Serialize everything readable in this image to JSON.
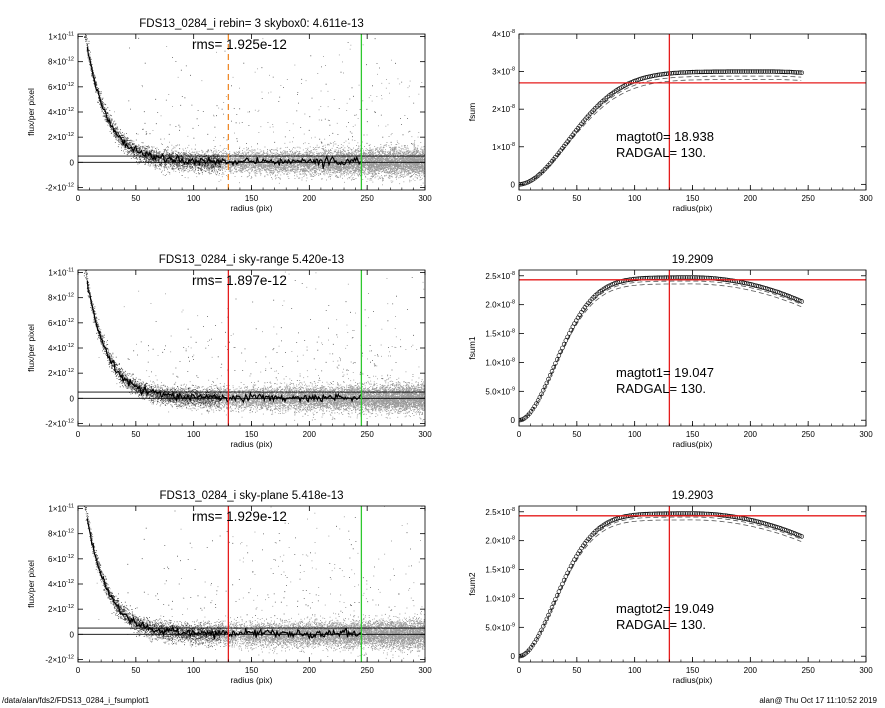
{
  "footer": {
    "left": "/data/alan/fds2/FDS13_0284_i_fsumplot1",
    "right": "alan@  Thu Oct 17 11:10:52 2019"
  },
  "colors": {
    "scatter": "#9a9a9a",
    "profile": "#000000",
    "inner_radius_line": "#e51c1c",
    "inner_radius_dashed_line": "#f08a2a",
    "outer_radius_line": "#2ec82e",
    "fsum_marker": "#000000",
    "fsum_dashed": "#555555"
  },
  "chart_data": [
    {
      "id": "profile-1",
      "type": "scatter",
      "title": "FDS13_0284_i rebin= 3    skybox0:  4.611e-13",
      "annotations": [
        "rms= 1.925e-12"
      ],
      "xlabel": "radius (pix)",
      "ylabel": "flux/per pixel",
      "xlim": [
        0,
        300
      ],
      "ylim": [
        -2.2e-12,
        1.02e-11
      ],
      "xticks": [
        0,
        50,
        100,
        150,
        200,
        250,
        300
      ],
      "xtick_labels": [
        "0",
        "50",
        "100",
        "150",
        "200",
        "250",
        "300"
      ],
      "yticks": [
        -2e-12,
        0,
        2e-12,
        4e-12,
        6e-12,
        8e-12,
        1e-11
      ],
      "ytick_labels": [
        "-2×10⁻¹²",
        "0",
        "2×10⁻¹²",
        "4×10⁻¹²",
        "6×10⁻¹²",
        "8×10⁻¹²",
        "1×10⁻¹¹"
      ],
      "hlines": [
        0,
        5e-13
      ],
      "vlines": [
        {
          "x": 130,
          "color": "#f08a2a",
          "style": "dashed"
        },
        {
          "x": 245,
          "color": "#2ec82e",
          "style": "solid"
        }
      ],
      "profile": {
        "peak_x": 5,
        "peak_y": 1.08e-11,
        "scale_length": 18,
        "end_x": 245
      },
      "scatter": {
        "x_range": [
          0,
          300
        ],
        "noise_rms": 1.925e-12,
        "extra_dark_points": true
      }
    },
    {
      "id": "profile-2",
      "type": "scatter",
      "title": "FDS13_0284_i sky-range  5.420e-13",
      "annotations": [
        "rms= 1.897e-12"
      ],
      "xlabel": "radius (pix)",
      "ylabel": "flux/per pixel",
      "xlim": [
        0,
        300
      ],
      "ylim": [
        -2.2e-12,
        1.02e-11
      ],
      "xticks": [
        0,
        50,
        100,
        150,
        200,
        250,
        300
      ],
      "xtick_labels": [
        "0",
        "50",
        "100",
        "150",
        "200",
        "250",
        "300"
      ],
      "yticks": [
        -2e-12,
        0,
        2e-12,
        4e-12,
        6e-12,
        8e-12,
        1e-11
      ],
      "ytick_labels": [
        "-2×10⁻¹²",
        "0",
        "2×10⁻¹²",
        "4×10⁻¹²",
        "6×10⁻¹²",
        "8×10⁻¹²",
        "1×10⁻¹¹"
      ],
      "hlines": [
        0,
        5e-13
      ],
      "vlines": [
        {
          "x": 130,
          "color": "#e51c1c",
          "style": "solid"
        },
        {
          "x": 245,
          "color": "#2ec82e",
          "style": "solid"
        }
      ],
      "profile": {
        "peak_x": 5,
        "peak_y": 1.08e-11,
        "scale_length": 18,
        "end_x": 245
      },
      "scatter": {
        "x_range": [
          0,
          300
        ],
        "noise_rms": 1.897e-12,
        "extra_dark_points": true
      }
    },
    {
      "id": "profile-3",
      "type": "scatter",
      "title": "FDS13_0284_i sky-plane  5.418e-13",
      "annotations": [
        "rms= 1.929e-12"
      ],
      "xlabel": "radius (pix)",
      "ylabel": "flux/per pixel",
      "xlim": [
        0,
        300
      ],
      "ylim": [
        -2.2e-12,
        1.02e-11
      ],
      "xticks": [
        0,
        50,
        100,
        150,
        200,
        250,
        300
      ],
      "xtick_labels": [
        "0",
        "50",
        "100",
        "150",
        "200",
        "250",
        "300"
      ],
      "yticks": [
        -2e-12,
        0,
        2e-12,
        4e-12,
        6e-12,
        8e-12,
        1e-11
      ],
      "ytick_labels": [
        "-2×10⁻¹²",
        "0",
        "2×10⁻¹²",
        "4×10⁻¹²",
        "6×10⁻¹²",
        "8×10⁻¹²",
        "1×10⁻¹¹"
      ],
      "hlines": [
        0,
        5e-13
      ],
      "vlines": [
        {
          "x": 130,
          "color": "#e51c1c",
          "style": "solid"
        },
        {
          "x": 245,
          "color": "#2ec82e",
          "style": "solid"
        }
      ],
      "profile": {
        "peak_x": 5,
        "peak_y": 1.08e-11,
        "scale_length": 18,
        "end_x": 245
      },
      "scatter": {
        "x_range": [
          0,
          300
        ],
        "noise_rms": 1.929e-12,
        "extra_dark_points": true
      }
    },
    {
      "id": "fsum-0",
      "type": "scatter",
      "title": "",
      "annotations": [
        "magtot0=  18.938",
        "RADGAL=    130."
      ],
      "xlabel": "radius(pix)",
      "ylabel": "fsum",
      "xlim": [
        0,
        300
      ],
      "ylim": [
        -1.5e-09,
        4e-08
      ],
      "xticks": [
        0,
        50,
        100,
        150,
        200,
        250,
        300
      ],
      "xtick_labels": [
        "0",
        "50",
        "100",
        "150",
        "200",
        "250",
        "300"
      ],
      "yticks": [
        0,
        1e-08,
        2e-08,
        3e-08,
        4e-08
      ],
      "ytick_labels": [
        "0",
        "1×10⁻⁸",
        "2×10⁻⁸",
        "3×10⁻⁸",
        "4×10⁻⁸"
      ],
      "hline": {
        "y": 2.7e-08,
        "color": "#e51c1c"
      },
      "vline": {
        "x": 130,
        "color": "#e51c1c"
      },
      "curve": {
        "x_max": 245,
        "plateau": 3e-08,
        "rise": 62,
        "peak_x": 215,
        "end_value": 2.97e-08,
        "marker": "circle"
      },
      "dashed_curves": [
        {
          "scale": 0.96
        },
        {
          "scale": 0.93
        }
      ]
    },
    {
      "id": "fsum-1",
      "type": "scatter",
      "title": "19.2909",
      "annotations": [
        "magtot1=  19.047",
        "RADGAL=    130."
      ],
      "xlabel": "radius(pix)",
      "ylabel": "fsum1",
      "xlim": [
        0,
        300
      ],
      "ylim": [
        -1e-09,
        2.6e-08
      ],
      "xticks": [
        0,
        50,
        100,
        150,
        200,
        250,
        300
      ],
      "xtick_labels": [
        "0",
        "50",
        "100",
        "150",
        "200",
        "250",
        "300"
      ],
      "yticks": [
        0,
        5e-09,
        1e-08,
        1.5e-08,
        2e-08,
        2.5e-08
      ],
      "ytick_labels": [
        "0",
        "5.0×10⁻⁹",
        "1.0×10⁻⁸",
        "1.5×10⁻⁸",
        "2.0×10⁻⁸",
        "2.5×10⁻⁸"
      ],
      "hline": {
        "y": 2.43e-08,
        "color": "#e51c1c"
      },
      "vline": {
        "x": 130,
        "color": "#e51c1c"
      },
      "curve": {
        "x_max": 245,
        "plateau": 2.47e-08,
        "rise": 45,
        "peak_x": 150,
        "end_value": 2.05e-08,
        "marker": "circle"
      },
      "dashed_curves": [
        {
          "scale": 0.975
        },
        {
          "scale": 0.955
        }
      ]
    },
    {
      "id": "fsum-2",
      "type": "scatter",
      "title": "19.2903",
      "annotations": [
        "magtot2=  19.049",
        "RADGAL=    130."
      ],
      "xlabel": "radius(pix)",
      "ylabel": "fsum2",
      "xlim": [
        0,
        300
      ],
      "ylim": [
        -1e-09,
        2.6e-08
      ],
      "xticks": [
        0,
        50,
        100,
        150,
        200,
        250,
        300
      ],
      "xtick_labels": [
        "0",
        "50",
        "100",
        "150",
        "200",
        "250",
        "300"
      ],
      "yticks": [
        0,
        5e-09,
        1e-08,
        1.5e-08,
        2e-08,
        2.5e-08
      ],
      "ytick_labels": [
        "0",
        "5.0×10⁻⁹",
        "1.0×10⁻⁸",
        "1.5×10⁻⁸",
        "2.0×10⁻⁸",
        "2.5×10⁻⁸"
      ],
      "hline": {
        "y": 2.43e-08,
        "color": "#e51c1c"
      },
      "vline": {
        "x": 130,
        "color": "#e51c1c"
      },
      "curve": {
        "x_max": 245,
        "plateau": 2.47e-08,
        "rise": 45,
        "peak_x": 150,
        "end_value": 2.07e-08,
        "marker": "circle"
      },
      "dashed_curves": [
        {
          "scale": 0.975
        },
        {
          "scale": 0.955
        }
      ]
    }
  ]
}
